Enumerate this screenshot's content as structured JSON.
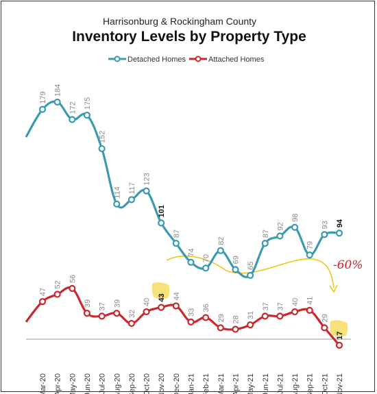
{
  "header": {
    "subtitle": "Harrisonburg & Rockingham County",
    "title": "Inventory Levels by Property Type"
  },
  "legend": {
    "detached_label": "Detached Homes",
    "attached_label": "Attached Homes"
  },
  "annotation": {
    "text": "-60%"
  },
  "colors": {
    "detached": "#3a9bb0",
    "attached": "#c8282e",
    "highlight": "#f7e27a",
    "arrow": "#f0c419",
    "note": "#d12020"
  },
  "chart_data": {
    "type": "line",
    "categories": [
      "Mar-20",
      "Apr-20",
      "May-20",
      "Jun-20",
      "Jul-20",
      "Aug-20",
      "Sep-20",
      "Oct-20",
      "Nov-20",
      "Dec-20",
      "Jan-21",
      "Feb-21",
      "Mar-21",
      "Apr-21",
      "May-21",
      "Jun-21",
      "Jul-21",
      "Aug-21",
      "Sep-21",
      "Oct-21",
      "Nov-21"
    ],
    "leading_point": {
      "detached": 160,
      "attached": 33
    },
    "series": [
      {
        "name": "Detached Homes",
        "values": [
          179,
          184,
          172,
          175,
          152,
          114,
          117,
          123,
          101,
          87,
          74,
          70,
          82,
          69,
          65,
          87,
          92,
          98,
          79,
          93,
          94
        ]
      },
      {
        "name": "Attached Homes",
        "values": [
          47,
          52,
          56,
          39,
          37,
          39,
          32,
          40,
          43,
          44,
          33,
          36,
          29,
          28,
          31,
          37,
          37,
          40,
          41,
          29,
          17
        ]
      }
    ],
    "ylim": [
      0,
      200
    ],
    "grid": false,
    "legend_position": "top"
  }
}
